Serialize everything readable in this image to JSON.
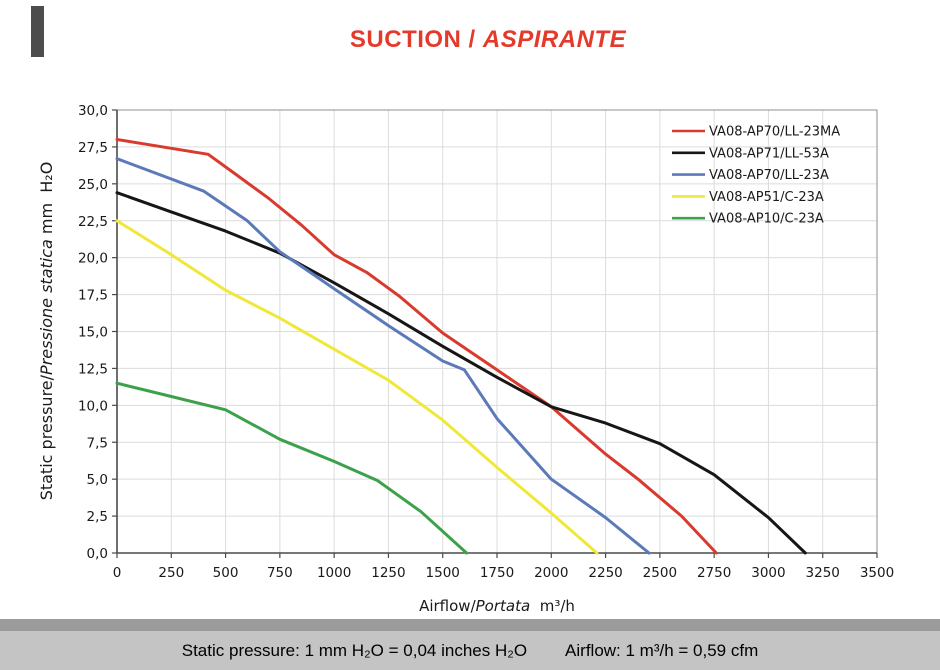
{
  "title": {
    "regular": "SUCTION / ",
    "italic": "ASPIRANTE",
    "color": "#e43a2c"
  },
  "footer": {
    "static_pressure_note": "Static pressure: 1 mm H₂O = 0,04 inches H₂O",
    "airflow_note": "Airflow: 1 m³/h = 0,59 cfm"
  },
  "colors": {
    "grid": "#dcdcdc",
    "frame": "#8f8f8f",
    "axis": "#4a4a4a",
    "tick_text": "#1a1a1a",
    "footer_band": "#c4c4c4",
    "footer_strip": "#9b9b9b"
  },
  "chart_data": {
    "type": "line",
    "title": "SUCTION / ASPIRANTE",
    "xlabel": "Airflow/Portata m³/h",
    "xlabel_parts": {
      "regular1": "Airflow/",
      "italic": "Portata",
      "regular2": "  m³/h"
    },
    "ylabel": "Static pressure/Pressione statica mm H₂O",
    "ylabel_parts": {
      "regular1": "Static pressure/",
      "italic": "Pressione statica",
      "regular2": " mm  H₂O"
    },
    "xlim": [
      0,
      3500
    ],
    "ylim": [
      0,
      30
    ],
    "grid": true,
    "legend_position": "top-right",
    "x_ticks": [
      0,
      250,
      500,
      750,
      1000,
      1250,
      1500,
      1750,
      2000,
      2250,
      2500,
      2750,
      3000,
      3250,
      3500
    ],
    "y_ticks": [
      0,
      2.5,
      5,
      7.5,
      10,
      12.5,
      15,
      17.5,
      20,
      22.5,
      25,
      27.5,
      30
    ],
    "y_tick_labels": [
      "0,0",
      "2,5",
      "5,0",
      "7,5",
      "10,0",
      "12,5",
      "15,0",
      "17,5",
      "20,0",
      "22,5",
      "25,0",
      "27,5",
      "30,0"
    ],
    "series": [
      {
        "name": "VA08-AP70/LL-23MA",
        "color": "#d93a2d",
        "points": [
          [
            0,
            28.0
          ],
          [
            420,
            27.0
          ],
          [
            560,
            25.5
          ],
          [
            700,
            24.0
          ],
          [
            850,
            22.2
          ],
          [
            1000,
            20.2
          ],
          [
            1150,
            19.0
          ],
          [
            1300,
            17.4
          ],
          [
            1500,
            14.9
          ],
          [
            1750,
            12.4
          ],
          [
            2000,
            9.9
          ],
          [
            2250,
            6.7
          ],
          [
            2400,
            5.0
          ],
          [
            2600,
            2.5
          ],
          [
            2760,
            0
          ]
        ]
      },
      {
        "name": "VA08-AP71/LL-53A",
        "color": "#161616",
        "points": [
          [
            0,
            24.4
          ],
          [
            250,
            23.1
          ],
          [
            500,
            21.8
          ],
          [
            750,
            20.3
          ],
          [
            1000,
            18.3
          ],
          [
            1250,
            16.2
          ],
          [
            1500,
            14.0
          ],
          [
            1750,
            11.9
          ],
          [
            2000,
            9.9
          ],
          [
            2250,
            8.8
          ],
          [
            2500,
            7.4
          ],
          [
            2750,
            5.3
          ],
          [
            3000,
            2.4
          ],
          [
            3170,
            0
          ]
        ]
      },
      {
        "name": "VA08-AP70/LL-23A",
        "color": "#5c79b9",
        "points": [
          [
            0,
            26.7
          ],
          [
            400,
            24.5
          ],
          [
            600,
            22.5
          ],
          [
            750,
            20.4
          ],
          [
            850,
            19.4
          ],
          [
            1000,
            17.9
          ],
          [
            1250,
            15.4
          ],
          [
            1500,
            13.0
          ],
          [
            1600,
            12.4
          ],
          [
            1750,
            9.1
          ],
          [
            2000,
            5.0
          ],
          [
            2250,
            2.4
          ],
          [
            2450,
            0
          ]
        ]
      },
      {
        "name": "VA08-AP51/C-23A",
        "color": "#f0e838",
        "points": [
          [
            0,
            22.5
          ],
          [
            250,
            20.2
          ],
          [
            500,
            17.8
          ],
          [
            750,
            15.9
          ],
          [
            1000,
            13.8
          ],
          [
            1250,
            11.7
          ],
          [
            1500,
            9.0
          ],
          [
            1750,
            5.8
          ],
          [
            2000,
            2.7
          ],
          [
            2210,
            0
          ]
        ]
      },
      {
        "name": "VA08-AP10/C-23A",
        "color": "#3ca14b",
        "points": [
          [
            0,
            11.5
          ],
          [
            250,
            10.6
          ],
          [
            500,
            9.7
          ],
          [
            750,
            7.7
          ],
          [
            1000,
            6.2
          ],
          [
            1200,
            4.9
          ],
          [
            1400,
            2.8
          ],
          [
            1610,
            0
          ]
        ]
      }
    ]
  }
}
